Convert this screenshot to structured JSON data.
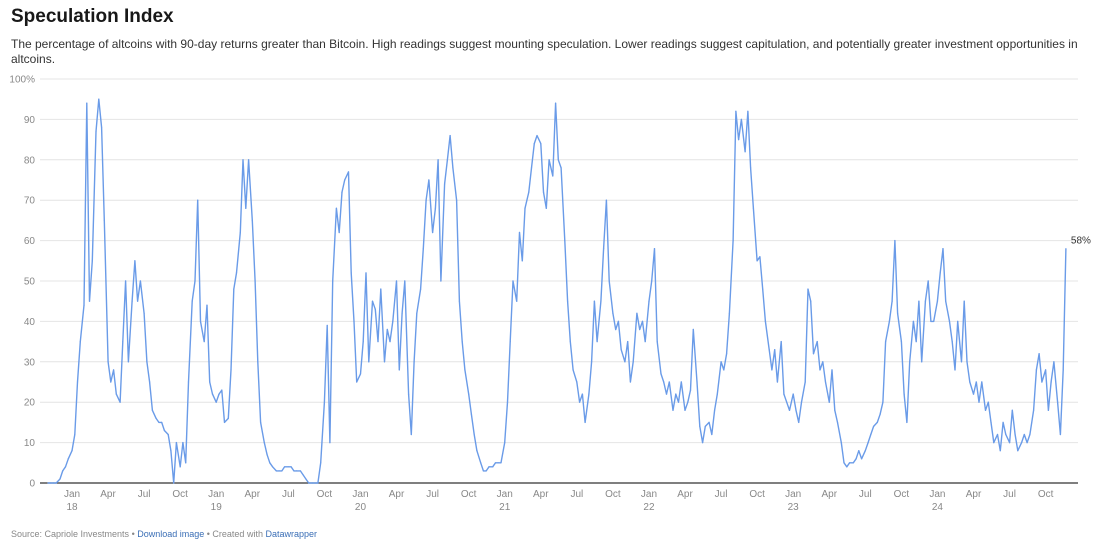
{
  "header": {
    "title": "Speculation Index",
    "subtitle": "The percentage of altcoins with 90-day returns greater than Bitcoin. High readings suggest mounting speculation. Lower readings suggest capitulation, and potentially greater investment opportunities in altcoins."
  },
  "footer": {
    "source": "Source: Capriole Investments",
    "sep": " • ",
    "download": "Download image",
    "created": "Created with",
    "datawrapper": "Datawrapper"
  },
  "chart_data": {
    "type": "line",
    "title": "Speculation Index",
    "ylabel": "",
    "xlabel": "",
    "ylim": [
      0,
      100
    ],
    "y_ticks": [
      "0",
      "10",
      "20",
      "30",
      "40",
      "50",
      "60",
      "70",
      "80",
      "90",
      "100%"
    ],
    "x_ticks": [
      {
        "date": "2018-01",
        "month": "Jan",
        "year": "18"
      },
      {
        "date": "2018-04",
        "month": "Apr"
      },
      {
        "date": "2018-07",
        "month": "Jul"
      },
      {
        "date": "2018-10",
        "month": "Oct"
      },
      {
        "date": "2019-01",
        "month": "Jan",
        "year": "19"
      },
      {
        "date": "2019-04",
        "month": "Apr"
      },
      {
        "date": "2019-07",
        "month": "Jul"
      },
      {
        "date": "2019-10",
        "month": "Oct"
      },
      {
        "date": "2020-01",
        "month": "Jan",
        "year": "20"
      },
      {
        "date": "2020-04",
        "month": "Apr"
      },
      {
        "date": "2020-07",
        "month": "Jul"
      },
      {
        "date": "2020-10",
        "month": "Oct"
      },
      {
        "date": "2021-01",
        "month": "Jan",
        "year": "21"
      },
      {
        "date": "2021-04",
        "month": "Apr"
      },
      {
        "date": "2021-07",
        "month": "Jul"
      },
      {
        "date": "2021-10",
        "month": "Oct"
      },
      {
        "date": "2022-01",
        "month": "Jan",
        "year": "22"
      },
      {
        "date": "2022-04",
        "month": "Apr"
      },
      {
        "date": "2022-07",
        "month": "Jul"
      },
      {
        "date": "2022-10",
        "month": "Oct"
      },
      {
        "date": "2023-01",
        "month": "Jan",
        "year": "23"
      },
      {
        "date": "2023-04",
        "month": "Apr"
      },
      {
        "date": "2023-07",
        "month": "Jul"
      },
      {
        "date": "2023-10",
        "month": "Oct"
      },
      {
        "date": "2024-01",
        "month": "Jan",
        "year": "24"
      },
      {
        "date": "2024-04",
        "month": "Apr"
      },
      {
        "date": "2024-07",
        "month": "Jul"
      },
      {
        "date": "2024-10",
        "month": "Oct"
      }
    ],
    "grid": true,
    "line_color": "#6a9be8",
    "end_label": "58%",
    "weekly_by_month": [
      [
        "2017-11",
        [
          0,
          0,
          0,
          0
        ]
      ],
      [
        "2017-12",
        [
          1,
          3,
          4,
          6
        ]
      ],
      [
        "2018-01",
        [
          8,
          12,
          25,
          35
        ]
      ],
      [
        "2018-02",
        [
          44,
          94,
          45,
          55
        ]
      ],
      [
        "2018-03",
        [
          87,
          95,
          88,
          65
        ]
      ],
      [
        "2018-04",
        [
          30,
          25,
          28,
          22
        ]
      ],
      [
        "2018-05",
        [
          20,
          35,
          50,
          30
        ]
      ],
      [
        "2018-06",
        [
          45,
          55,
          45,
          50
        ]
      ],
      [
        "2018-07",
        [
          42,
          30,
          25,
          18
        ]
      ],
      [
        "2018-08",
        [
          16,
          15,
          15,
          13
        ]
      ],
      [
        "2018-09",
        [
          12,
          8,
          0,
          10
        ]
      ],
      [
        "2018-10",
        [
          4,
          10,
          5,
          25
        ]
      ],
      [
        "2018-11",
        [
          45,
          50,
          70,
          40
        ]
      ],
      [
        "2018-12",
        [
          35,
          44,
          25,
          22
        ]
      ],
      [
        "2019-01",
        [
          20,
          22,
          23,
          15
        ]
      ],
      [
        "2019-02",
        [
          16,
          28,
          48,
          52
        ]
      ],
      [
        "2019-03",
        [
          62,
          80,
          68,
          80
        ]
      ],
      [
        "2019-04",
        [
          65,
          50,
          30,
          15
        ]
      ],
      [
        "2019-05",
        [
          10,
          7,
          5,
          4
        ]
      ],
      [
        "2019-06",
        [
          3,
          3,
          3,
          4
        ]
      ],
      [
        "2019-07",
        [
          4,
          4,
          3,
          3
        ]
      ],
      [
        "2019-08",
        [
          3,
          2,
          1,
          0
        ]
      ],
      [
        "2019-09",
        [
          0,
          0,
          0,
          5
        ]
      ],
      [
        "2019-10",
        [
          20,
          39,
          10,
          50
        ]
      ],
      [
        "2019-11",
        [
          68,
          62,
          72,
          75
        ]
      ],
      [
        "2019-12",
        [
          77,
          52,
          40,
          25
        ]
      ],
      [
        "2020-01",
        [
          27,
          35,
          52,
          30
        ]
      ],
      [
        "2020-02",
        [
          45,
          43,
          35,
          48
        ]
      ],
      [
        "2020-03",
        [
          30,
          38,
          35,
          40
        ]
      ],
      [
        "2020-04",
        [
          50,
          28,
          42,
          50
        ]
      ],
      [
        "2020-05",
        [
          22,
          12,
          30,
          42
        ]
      ],
      [
        "2020-06",
        [
          48,
          58,
          70,
          75
        ]
      ],
      [
        "2020-07",
        [
          62,
          68,
          80,
          50
        ]
      ],
      [
        "2020-08",
        [
          74,
          80,
          86,
          78
        ]
      ],
      [
        "2020-09",
        [
          70,
          45,
          35,
          28
        ]
      ],
      [
        "2020-10",
        [
          22,
          17,
          12,
          8
        ]
      ],
      [
        "2020-11",
        [
          5,
          3,
          3,
          4
        ]
      ],
      [
        "2020-12",
        [
          4,
          5,
          5,
          5
        ]
      ],
      [
        "2021-01",
        [
          10,
          20,
          35,
          50
        ]
      ],
      [
        "2021-02",
        [
          45,
          62,
          55,
          68
        ]
      ],
      [
        "2021-03",
        [
          72,
          78,
          84,
          86
        ]
      ],
      [
        "2021-04",
        [
          84,
          72,
          68,
          80
        ]
      ],
      [
        "2021-05",
        [
          76,
          94,
          80,
          78
        ]
      ],
      [
        "2021-06",
        [
          60,
          45,
          35,
          28
        ]
      ],
      [
        "2021-07",
        [
          25,
          20,
          22,
          15
        ]
      ],
      [
        "2021-08",
        [
          22,
          30,
          45,
          35
        ]
      ],
      [
        "2021-09",
        [
          45,
          58,
          70,
          50
        ]
      ],
      [
        "2021-10",
        [
          42,
          38,
          40,
          33
        ]
      ],
      [
        "2021-11",
        [
          30,
          35,
          25,
          30
        ]
      ],
      [
        "2021-12",
        [
          42,
          38,
          40,
          35
        ]
      ],
      [
        "2022-01",
        [
          45,
          50,
          58,
          35
        ]
      ],
      [
        "2022-02",
        [
          27,
          25,
          22,
          25
        ]
      ],
      [
        "2022-03",
        [
          18,
          22,
          20,
          25
        ]
      ],
      [
        "2022-04",
        [
          18,
          20,
          23,
          38
        ]
      ],
      [
        "2022-05",
        [
          25,
          14,
          10,
          14
        ]
      ],
      [
        "2022-06",
        [
          15,
          12,
          18,
          22
        ]
      ],
      [
        "2022-07",
        [
          30,
          28,
          32,
          42
        ]
      ],
      [
        "2022-08",
        [
          60,
          92,
          85,
          90
        ]
      ],
      [
        "2022-09",
        [
          82,
          92,
          78,
          68
        ]
      ],
      [
        "2022-10",
        [
          55,
          56,
          48,
          40
        ]
      ],
      [
        "2022-11",
        [
          33,
          28,
          33,
          25
        ]
      ],
      [
        "2022-12",
        [
          35,
          22,
          20,
          18
        ]
      ],
      [
        "2023-01",
        [
          22,
          18,
          15,
          20
        ]
      ],
      [
        "2023-02",
        [
          25,
          48,
          45,
          32
        ]
      ],
      [
        "2023-03",
        [
          35,
          28,
          30,
          25
        ]
      ],
      [
        "2023-04",
        [
          20,
          28,
          18,
          15
        ]
      ],
      [
        "2023-05",
        [
          10,
          5,
          4,
          5
        ]
      ],
      [
        "2023-06",
        [
          5,
          6,
          8,
          6
        ]
      ],
      [
        "2023-07",
        [
          8,
          10,
          12,
          14
        ]
      ],
      [
        "2023-08",
        [
          15,
          17,
          20,
          35
        ]
      ],
      [
        "2023-09",
        [
          40,
          45,
          60,
          42
        ]
      ],
      [
        "2023-10",
        [
          35,
          22,
          15,
          30
        ]
      ],
      [
        "2023-11",
        [
          40,
          35,
          45,
          30
        ]
      ],
      [
        "2023-12",
        [
          45,
          50,
          40,
          40
        ]
      ],
      [
        "2024-01",
        [
          45,
          52,
          58,
          45
        ]
      ],
      [
        "2024-02",
        [
          40,
          35,
          28,
          40
        ]
      ],
      [
        "2024-03",
        [
          30,
          45,
          30,
          25
        ]
      ],
      [
        "2024-04",
        [
          22,
          25,
          20,
          25
        ]
      ],
      [
        "2024-05",
        [
          18,
          20,
          15,
          10
        ]
      ],
      [
        "2024-06",
        [
          12,
          8,
          15,
          12
        ]
      ],
      [
        "2024-07",
        [
          10,
          18,
          12,
          8
        ]
      ],
      [
        "2024-08",
        [
          10,
          12,
          10,
          12
        ]
      ],
      [
        "2024-09",
        [
          18,
          28,
          32,
          25
        ]
      ],
      [
        "2024-10",
        [
          28,
          18,
          25,
          30
        ]
      ],
      [
        "2024-11",
        [
          20,
          12,
          28,
          58
        ]
      ]
    ]
  }
}
